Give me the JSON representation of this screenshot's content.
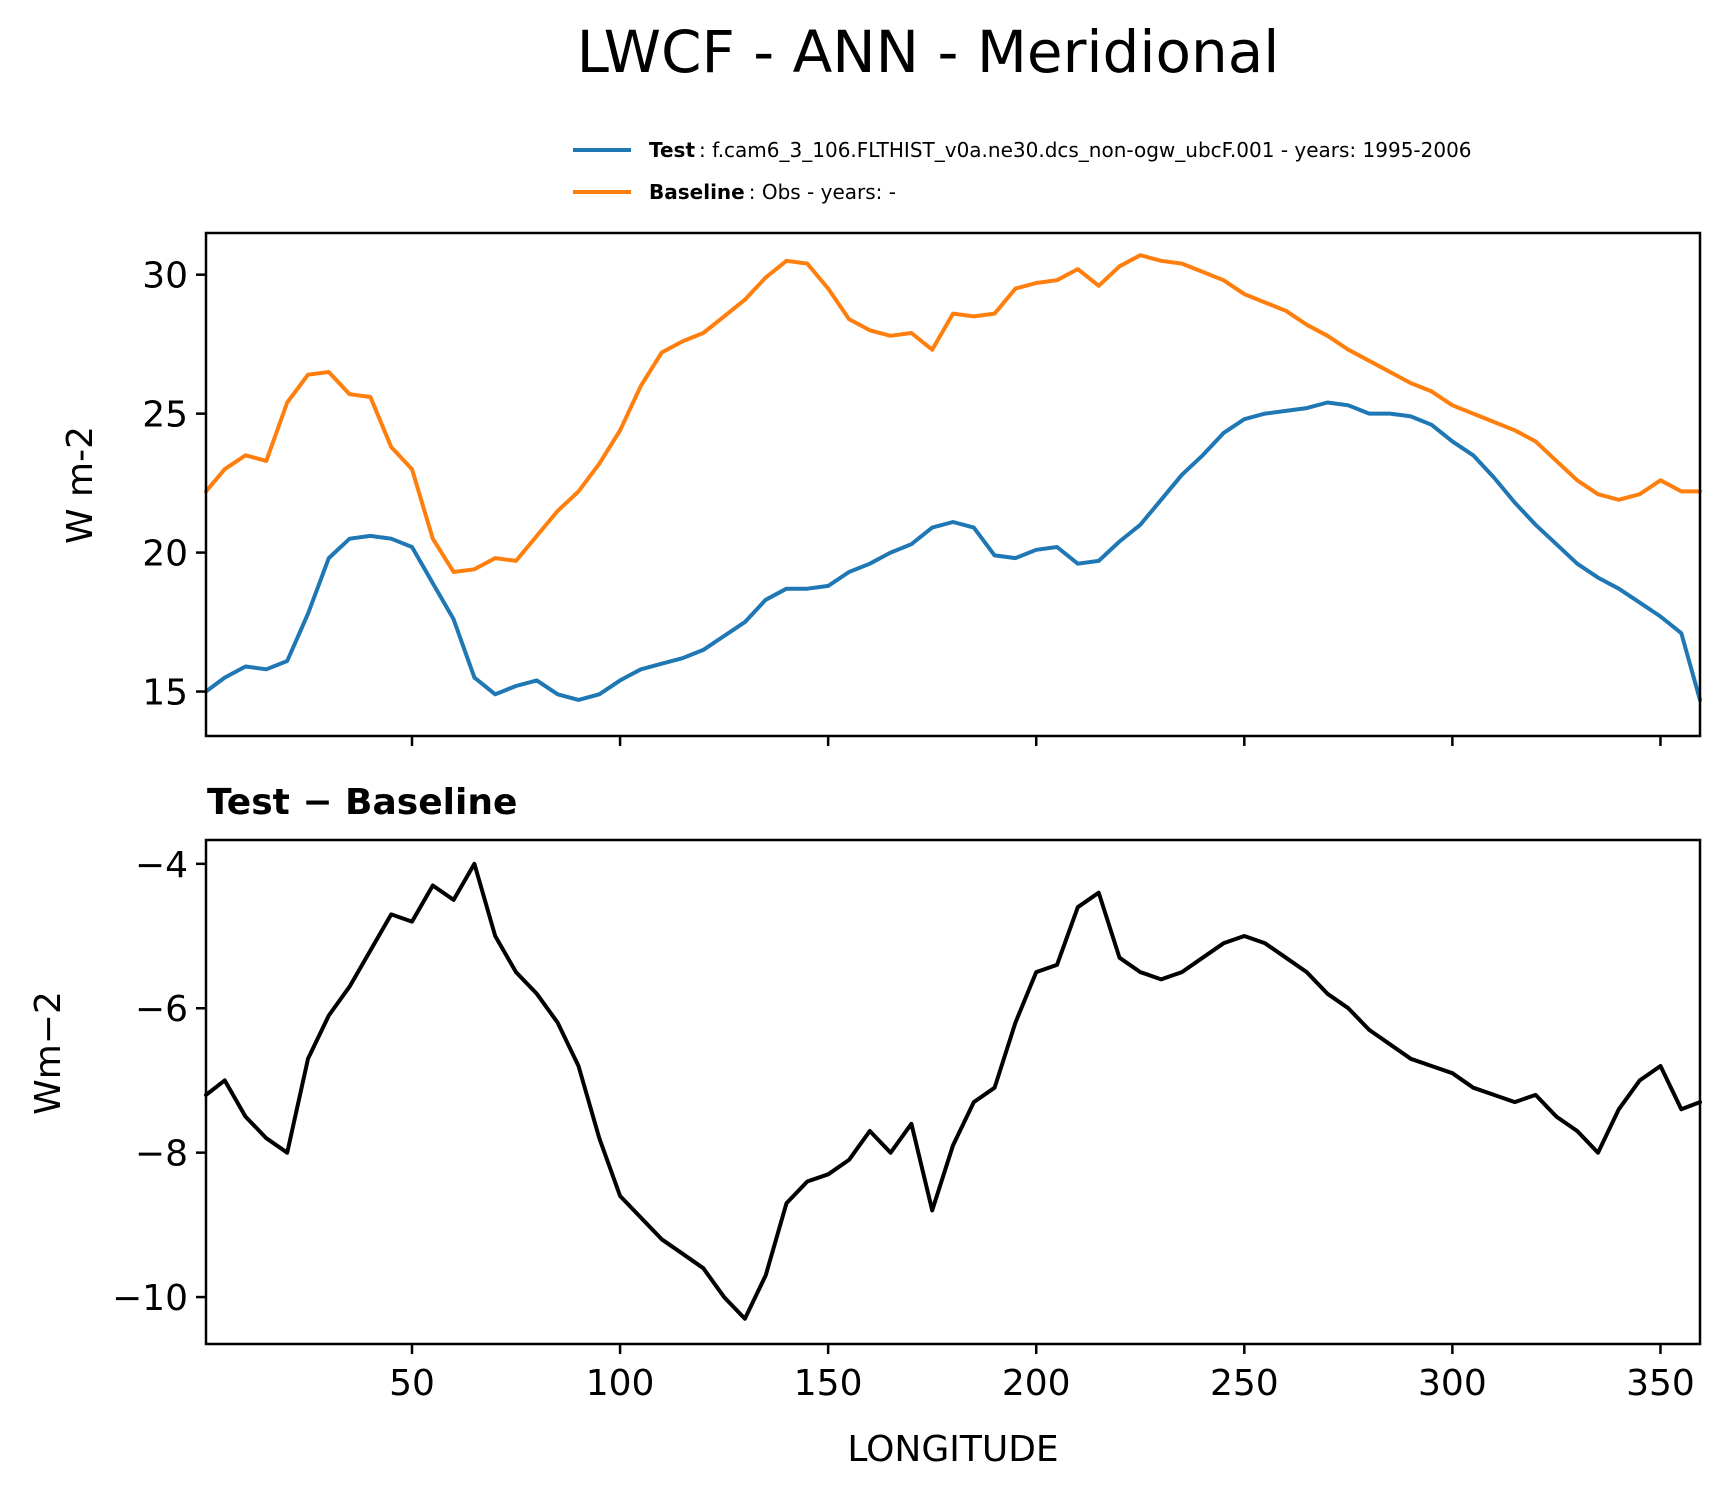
{
  "chart_data": [
    {
      "type": "line",
      "title": "LWCF - ANN - Meridional",
      "xlabel": "",
      "ylabel": "W m-2",
      "xlim": [
        0.5,
        359.5
      ],
      "ylim": [
        13.4,
        31.5
      ],
      "xticks": [
        50,
        100,
        150,
        200,
        250,
        300,
        350
      ],
      "yticks": [
        15,
        20,
        25,
        30
      ],
      "ytick_labels": [
        "15",
        "20",
        "25",
        "30"
      ],
      "legend": [
        {
          "bold": "Test",
          "text": ": f.cam6_3_106.FLTHIST_v0a.ne30.dcs_non-ogw_ubcF.001 - years: 1995-2006",
          "color": "#1f77b4"
        },
        {
          "bold": "Baseline",
          "text": ": Obs - years: -",
          "color": "#ff7f0e"
        }
      ],
      "series": [
        {
          "name": "Test",
          "color": "#1f77b4",
          "points": [
            [
              0,
              15.0
            ],
            [
              5,
              15.5
            ],
            [
              10,
              15.9
            ],
            [
              15,
              15.8
            ],
            [
              20,
              16.1
            ],
            [
              25,
              17.8
            ],
            [
              30,
              19.8
            ],
            [
              35,
              20.5
            ],
            [
              40,
              20.6
            ],
            [
              45,
              20.5
            ],
            [
              50,
              20.2
            ],
            [
              55,
              18.9
            ],
            [
              60,
              17.6
            ],
            [
              65,
              15.5
            ],
            [
              70,
              14.9
            ],
            [
              75,
              15.2
            ],
            [
              80,
              15.4
            ],
            [
              85,
              14.9
            ],
            [
              90,
              14.7
            ],
            [
              95,
              14.9
            ],
            [
              100,
              15.4
            ],
            [
              105,
              15.8
            ],
            [
              110,
              16.0
            ],
            [
              115,
              16.2
            ],
            [
              120,
              16.5
            ],
            [
              125,
              17.0
            ],
            [
              130,
              17.5
            ],
            [
              135,
              18.3
            ],
            [
              140,
              18.7
            ],
            [
              145,
              18.7
            ],
            [
              150,
              18.8
            ],
            [
              155,
              19.3
            ],
            [
              160,
              19.6
            ],
            [
              165,
              20.0
            ],
            [
              170,
              20.3
            ],
            [
              175,
              20.9
            ],
            [
              180,
              21.1
            ],
            [
              185,
              20.9
            ],
            [
              190,
              19.9
            ],
            [
              195,
              19.8
            ],
            [
              200,
              20.1
            ],
            [
              205,
              20.2
            ],
            [
              210,
              19.6
            ],
            [
              215,
              19.7
            ],
            [
              220,
              20.4
            ],
            [
              225,
              21.0
            ],
            [
              230,
              21.9
            ],
            [
              235,
              22.8
            ],
            [
              240,
              23.5
            ],
            [
              245,
              24.3
            ],
            [
              250,
              24.8
            ],
            [
              255,
              25.0
            ],
            [
              260,
              25.1
            ],
            [
              265,
              25.2
            ],
            [
              270,
              25.4
            ],
            [
              275,
              25.3
            ],
            [
              280,
              25.0
            ],
            [
              285,
              25.0
            ],
            [
              290,
              24.9
            ],
            [
              295,
              24.6
            ],
            [
              300,
              24.0
            ],
            [
              305,
              23.5
            ],
            [
              310,
              22.7
            ],
            [
              315,
              21.8
            ],
            [
              320,
              21.0
            ],
            [
              325,
              20.3
            ],
            [
              330,
              19.6
            ],
            [
              335,
              19.1
            ],
            [
              340,
              18.7
            ],
            [
              345,
              18.2
            ],
            [
              350,
              17.7
            ],
            [
              355,
              17.1
            ],
            [
              359.5,
              14.7
            ]
          ]
        },
        {
          "name": "Baseline",
          "color": "#ff7f0e",
          "points": [
            [
              0,
              22.2
            ],
            [
              5,
              23.0
            ],
            [
              10,
              23.5
            ],
            [
              15,
              23.3
            ],
            [
              20,
              25.4
            ],
            [
              25,
              26.4
            ],
            [
              30,
              26.5
            ],
            [
              35,
              25.7
            ],
            [
              40,
              25.6
            ],
            [
              45,
              23.8
            ],
            [
              50,
              23.0
            ],
            [
              55,
              20.5
            ],
            [
              60,
              19.3
            ],
            [
              65,
              19.4
            ],
            [
              70,
              19.8
            ],
            [
              75,
              19.7
            ],
            [
              80,
              20.6
            ],
            [
              85,
              21.5
            ],
            [
              90,
              22.2
            ],
            [
              95,
              23.2
            ],
            [
              100,
              24.4
            ],
            [
              105,
              26.0
            ],
            [
              110,
              27.2
            ],
            [
              115,
              27.6
            ],
            [
              120,
              27.9
            ],
            [
              125,
              28.5
            ],
            [
              130,
              29.1
            ],
            [
              135,
              29.9
            ],
            [
              140,
              30.5
            ],
            [
              145,
              30.4
            ],
            [
              150,
              29.5
            ],
            [
              155,
              28.4
            ],
            [
              160,
              28.0
            ],
            [
              165,
              27.8
            ],
            [
              170,
              27.9
            ],
            [
              175,
              27.3
            ],
            [
              180,
              28.6
            ],
            [
              185,
              28.5
            ],
            [
              190,
              28.6
            ],
            [
              195,
              29.5
            ],
            [
              200,
              29.7
            ],
            [
              205,
              29.8
            ],
            [
              210,
              30.2
            ],
            [
              215,
              29.6
            ],
            [
              220,
              30.3
            ],
            [
              225,
              30.7
            ],
            [
              230,
              30.5
            ],
            [
              235,
              30.4
            ],
            [
              240,
              30.1
            ],
            [
              245,
              29.8
            ],
            [
              250,
              29.3
            ],
            [
              255,
              29.0
            ],
            [
              260,
              28.7
            ],
            [
              265,
              28.2
            ],
            [
              270,
              27.8
            ],
            [
              275,
              27.3
            ],
            [
              280,
              26.9
            ],
            [
              285,
              26.5
            ],
            [
              290,
              26.1
            ],
            [
              295,
              25.8
            ],
            [
              300,
              25.3
            ],
            [
              305,
              25.0
            ],
            [
              310,
              24.7
            ],
            [
              315,
              24.4
            ],
            [
              320,
              24.0
            ],
            [
              325,
              23.3
            ],
            [
              330,
              22.6
            ],
            [
              335,
              22.1
            ],
            [
              340,
              21.9
            ],
            [
              345,
              22.1
            ],
            [
              350,
              22.6
            ],
            [
              355,
              22.2
            ],
            [
              359.5,
              22.2
            ]
          ]
        }
      ]
    },
    {
      "type": "line",
      "title": "Test − Baseline",
      "xlabel": "LONGITUDE",
      "ylabel": "Wm−2",
      "xlim": [
        0.5,
        359.5
      ],
      "ylim": [
        -10.65,
        -3.67
      ],
      "xticks": [
        50,
        100,
        150,
        200,
        250,
        300,
        350
      ],
      "xtick_labels": [
        "50",
        "100",
        "150",
        "200",
        "250",
        "300",
        "350"
      ],
      "yticks": [
        -4,
        -6,
        -8,
        -10
      ],
      "ytick_labels": [
        "−4",
        "−6",
        "−8",
        "−10"
      ],
      "series": [
        {
          "name": "Test − Baseline",
          "color": "#000000",
          "points": [
            [
              0,
              -7.2
            ],
            [
              5,
              -7.0
            ],
            [
              10,
              -7.5
            ],
            [
              15,
              -7.8
            ],
            [
              20,
              -8.0
            ],
            [
              25,
              -6.7
            ],
            [
              30,
              -6.1
            ],
            [
              35,
              -5.7
            ],
            [
              40,
              -5.2
            ],
            [
              45,
              -4.7
            ],
            [
              50,
              -4.8
            ],
            [
              55,
              -4.3
            ],
            [
              60,
              -4.5
            ],
            [
              65,
              -4.0
            ],
            [
              70,
              -5.0
            ],
            [
              75,
              -5.5
            ],
            [
              80,
              -5.8
            ],
            [
              85,
              -6.2
            ],
            [
              90,
              -6.8
            ],
            [
              95,
              -7.8
            ],
            [
              100,
              -8.6
            ],
            [
              105,
              -8.9
            ],
            [
              110,
              -9.2
            ],
            [
              115,
              -9.4
            ],
            [
              120,
              -9.6
            ],
            [
              125,
              -10.0
            ],
            [
              130,
              -10.3
            ],
            [
              135,
              -9.7
            ],
            [
              140,
              -8.7
            ],
            [
              145,
              -8.4
            ],
            [
              150,
              -8.3
            ],
            [
              155,
              -8.1
            ],
            [
              160,
              -7.7
            ],
            [
              165,
              -8.0
            ],
            [
              170,
              -7.6
            ],
            [
              175,
              -8.8
            ],
            [
              180,
              -7.9
            ],
            [
              185,
              -7.3
            ],
            [
              190,
              -7.1
            ],
            [
              195,
              -6.2
            ],
            [
              200,
              -5.5
            ],
            [
              205,
              -5.4
            ],
            [
              210,
              -4.6
            ],
            [
              215,
              -4.4
            ],
            [
              220,
              -5.3
            ],
            [
              225,
              -5.5
            ],
            [
              230,
              -5.6
            ],
            [
              235,
              -5.5
            ],
            [
              240,
              -5.3
            ],
            [
              245,
              -5.1
            ],
            [
              250,
              -5.0
            ],
            [
              255,
              -5.1
            ],
            [
              260,
              -5.3
            ],
            [
              265,
              -5.5
            ],
            [
              270,
              -5.8
            ],
            [
              275,
              -6.0
            ],
            [
              280,
              -6.3
            ],
            [
              285,
              -6.5
            ],
            [
              290,
              -6.7
            ],
            [
              295,
              -6.8
            ],
            [
              300,
              -6.9
            ],
            [
              305,
              -7.1
            ],
            [
              310,
              -7.2
            ],
            [
              315,
              -7.3
            ],
            [
              320,
              -7.2
            ],
            [
              325,
              -7.5
            ],
            [
              330,
              -7.7
            ],
            [
              335,
              -8.0
            ],
            [
              340,
              -7.4
            ],
            [
              345,
              -7.0
            ],
            [
              350,
              -6.8
            ],
            [
              355,
              -7.4
            ],
            [
              359.5,
              -7.3
            ]
          ]
        }
      ]
    }
  ]
}
